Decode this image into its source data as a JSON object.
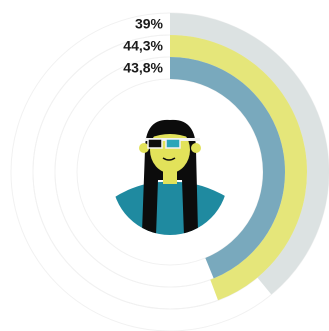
{
  "chart_data": {
    "type": "radial_bar",
    "values": [
      39,
      44.3,
      43.8
    ],
    "value_labels": [
      "39%",
      "44,3%",
      "43,8%"
    ],
    "colors": [
      "#dce2e2",
      "#e5e67a",
      "#79a9bd"
    ],
    "ylim": [
      0,
      100
    ]
  }
}
